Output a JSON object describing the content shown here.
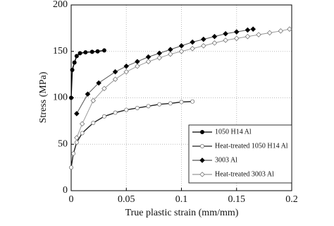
{
  "chart_data": {
    "type": "line",
    "xlabel": "True plastic strain (mm/mm)",
    "ylabel": "Stress (MPa)",
    "xlim": [
      0,
      0.2
    ],
    "xticks": [
      0,
      0.05,
      0.1,
      0.15,
      0.2
    ],
    "ylim": [
      0,
      200
    ],
    "yticks": [
      0,
      50,
      100,
      150,
      200
    ],
    "grid": true,
    "legend": "lower right",
    "series": [
      {
        "name": "1050 H14 Al",
        "color": "#000000",
        "marker": "circle",
        "marker_fill": "#000000",
        "x": [
          0,
          0.001,
          0.003,
          0.005,
          0.008,
          0.013,
          0.019,
          0.024,
          0.03
        ],
        "values": [
          100,
          130,
          138,
          145,
          148,
          149,
          149.5,
          150,
          151
        ]
      },
      {
        "name": "Heat-treated 1050 H14 Al",
        "color": "#222222",
        "marker": "circle",
        "marker_fill": "#ffffff",
        "x": [
          0,
          0.002,
          0.005,
          0.01,
          0.02,
          0.03,
          0.04,
          0.05,
          0.06,
          0.07,
          0.08,
          0.09,
          0.1,
          0.11
        ],
        "values": [
          25,
          40,
          52,
          62,
          73,
          80,
          84,
          87,
          89,
          91,
          93,
          94,
          95.5,
          96
        ]
      },
      {
        "name": "3003 Al",
        "color": "#555555",
        "marker": "diamond",
        "marker_fill": "#000000",
        "x": [
          0.005,
          0.015,
          0.025,
          0.04,
          0.05,
          0.06,
          0.07,
          0.08,
          0.09,
          0.1,
          0.11,
          0.12,
          0.13,
          0.14,
          0.15,
          0.16,
          0.165
        ],
        "values": [
          83,
          104,
          116,
          128,
          134,
          139,
          144,
          148,
          152,
          156,
          160,
          163,
          166,
          169,
          171,
          173,
          174
        ]
      },
      {
        "name": "Heat-treated 3003 Al",
        "color": "#999999",
        "marker": "diamond",
        "marker_fill": "#ffffff",
        "x": [
          0.005,
          0.01,
          0.02,
          0.03,
          0.04,
          0.05,
          0.06,
          0.07,
          0.08,
          0.09,
          0.1,
          0.11,
          0.12,
          0.13,
          0.14,
          0.15,
          0.16,
          0.17,
          0.18,
          0.19,
          0.198
        ],
        "values": [
          57,
          72,
          97,
          110,
          120,
          128,
          134,
          139,
          143,
          147,
          150,
          153,
          156,
          159,
          162,
          164,
          166,
          168,
          170,
          172,
          174
        ]
      }
    ]
  }
}
